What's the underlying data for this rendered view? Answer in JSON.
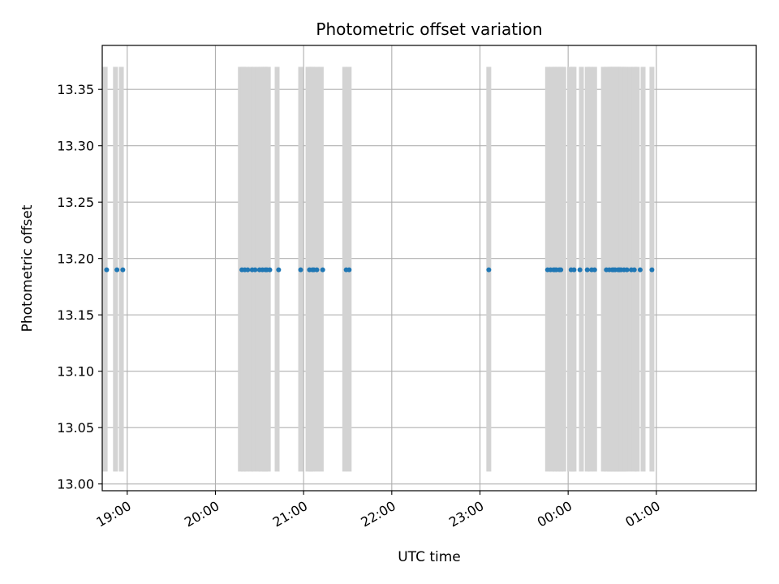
{
  "chart_data": {
    "type": "scatter",
    "title": "Photometric offset variation",
    "xlabel": "UTC time",
    "ylabel": "Photometric offset",
    "x_unit": "UTC time (HH:MM)",
    "xlim": [
      "18:43",
      "02:08"
    ],
    "ylim": [
      12.994,
      13.389
    ],
    "x_ticks": [
      "19:00",
      "20:00",
      "21:00",
      "22:00",
      "23:00",
      "00:00",
      "01:00"
    ],
    "y_ticks": [
      "13.00",
      "13.05",
      "13.10",
      "13.15",
      "13.20",
      "13.25",
      "13.30",
      "13.35"
    ],
    "grid": true,
    "legend": "none",
    "colors": {
      "points": "#1f77b4",
      "bands": "#d3d3d3",
      "grid": "#b0b0b0",
      "frame": "#000000"
    },
    "band_range": [
      13.011,
      13.37
    ],
    "bands": [
      "18:45",
      "18:52",
      "18:56",
      "20:17",
      "20:19",
      "20:21",
      "20:24",
      "20:26",
      "20:29",
      "20:31",
      "20:33",
      "20:34",
      "20:36",
      "20:42",
      "20:58",
      "21:03",
      "21:05",
      "21:06",
      "21:09",
      "21:12",
      "21:28",
      "21:31",
      "23:06",
      "23:46",
      "23:49",
      "23:51",
      "23:53",
      "23:55",
      "23:57",
      "00:01",
      "00:03",
      "00:04",
      "00:09",
      "00:13",
      "00:15",
      "00:18",
      "00:24",
      "00:26",
      "00:28",
      "00:29",
      "00:30",
      "00:31",
      "00:32",
      "00:33",
      "00:34",
      "00:35",
      "00:36",
      "00:38",
      "00:39",
      "00:42",
      "00:45",
      "00:47",
      "00:51",
      "00:57"
    ],
    "series": [
      {
        "x": [
          "18:46",
          "18:53",
          "18:57",
          "20:18",
          "20:20",
          "20:22",
          "20:25",
          "20:27",
          "20:30",
          "20:32",
          "20:34",
          "20:35",
          "20:37",
          "20:43",
          "20:58",
          "21:04",
          "21:06",
          "21:07",
          "21:09",
          "21:13",
          "21:29",
          "21:31",
          "23:06",
          "23:46",
          "23:48",
          "23:50",
          "23:51",
          "23:52",
          "23:54",
          "23:55",
          "00:02",
          "00:04",
          "00:08",
          "00:13",
          "00:16",
          "00:18",
          "00:26",
          "00:28",
          "00:30",
          "00:31",
          "00:32",
          "00:34",
          "00:35",
          "00:36",
          "00:38",
          "00:40",
          "00:43",
          "00:45",
          "00:49",
          "00:57"
        ],
        "y": [
          13.19,
          13.19,
          13.19,
          13.19,
          13.19,
          13.19,
          13.19,
          13.19,
          13.19,
          13.19,
          13.19,
          13.19,
          13.19,
          13.19,
          13.19,
          13.19,
          13.19,
          13.19,
          13.19,
          13.19,
          13.19,
          13.19,
          13.19,
          13.19,
          13.19,
          13.19,
          13.19,
          13.19,
          13.19,
          13.19,
          13.19,
          13.19,
          13.19,
          13.19,
          13.19,
          13.19,
          13.19,
          13.19,
          13.19,
          13.19,
          13.19,
          13.19,
          13.19,
          13.19,
          13.19,
          13.19,
          13.19,
          13.19,
          13.19,
          13.19
        ]
      }
    ]
  }
}
